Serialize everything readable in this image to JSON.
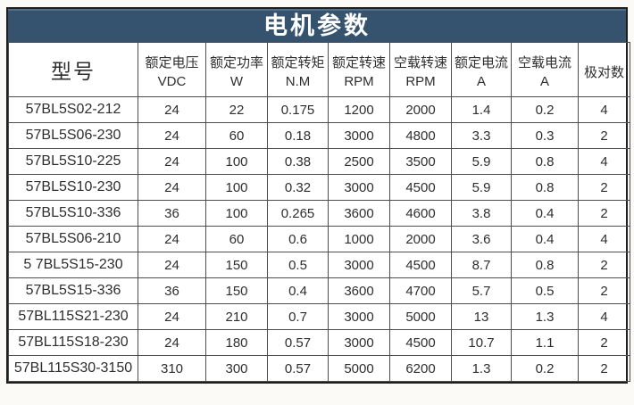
{
  "title": "电机参数",
  "colors": {
    "header_bg": "#35536e",
    "header_bg_top": "#50708c",
    "grid": "#4d4d4d",
    "outer_border": "#1f1f1f",
    "text": "#2e2e2e",
    "page_bg": "#fbfaf7"
  },
  "table": {
    "columns": [
      {
        "name": "model",
        "label": "型号",
        "unit": ""
      },
      {
        "name": "rated-voltage",
        "label": "额定电压",
        "unit": "VDC"
      },
      {
        "name": "rated-power",
        "label": "额定功率",
        "unit": "W"
      },
      {
        "name": "rated-torque",
        "label": "额定转矩",
        "unit": "N.M"
      },
      {
        "name": "rated-speed",
        "label": "额定转速",
        "unit": "RPM"
      },
      {
        "name": "no-load-speed",
        "label": "空载转速",
        "unit": "RPM"
      },
      {
        "name": "rated-current",
        "label": "额定电流",
        "unit": "A"
      },
      {
        "name": "no-load-current",
        "label": "空载电流",
        "unit": "A"
      },
      {
        "name": "pole-pairs",
        "label": "极对数",
        "unit": ""
      }
    ],
    "rows": [
      [
        "57BL5S02-212",
        "24",
        "22",
        "0.175",
        "1200",
        "2000",
        "1.4",
        "0.2",
        "4"
      ],
      [
        "57BL5S06-230",
        "24",
        "60",
        "0.18",
        "3000",
        "4800",
        "3.3",
        "0.3",
        "2"
      ],
      [
        "57BL5S10-225",
        "24",
        "100",
        "0.38",
        "2500",
        "3500",
        "5.9",
        "0.8",
        "4"
      ],
      [
        "57BL5S10-230",
        "24",
        "100",
        "0.32",
        "3000",
        "4500",
        "5.9",
        "0.8",
        "2"
      ],
      [
        "57BL5S10-336",
        "36",
        "100",
        "0.265",
        "3600",
        "4600",
        "3.8",
        "0.4",
        "2"
      ],
      [
        "57BL5S06-210",
        "24",
        "60",
        "0.6",
        "1000",
        "2000",
        "3.6",
        "0.4",
        "4"
      ],
      [
        "5 7BL5S15-230",
        "24",
        "150",
        "0.5",
        "3000",
        "4500",
        "8.7",
        "0.8",
        "2"
      ],
      [
        "57BL5S15-336",
        "36",
        "150",
        "0.4",
        "3600",
        "4700",
        "5.7",
        "0.5",
        "2"
      ],
      [
        "57BL115S21-230",
        "24",
        "210",
        "0.7",
        "3000",
        "5000",
        "13",
        "1.3",
        "4"
      ],
      [
        "57BL115S18-230",
        "24",
        "180",
        "0.57",
        "3000",
        "4500",
        "10.7",
        "1.1",
        "2"
      ],
      [
        "57BL115S30-3150",
        "310",
        "300",
        "0.57",
        "5000",
        "6200",
        "1.3",
        "0.2",
        "2"
      ]
    ]
  }
}
